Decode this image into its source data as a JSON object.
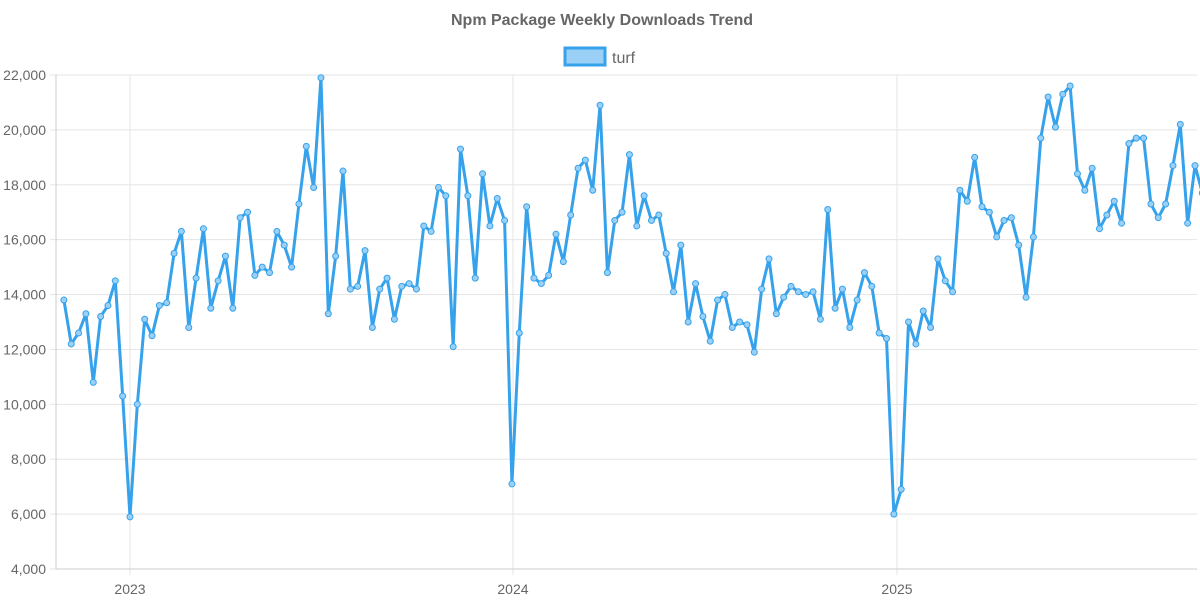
{
  "chart_data": {
    "type": "line",
    "title": "Npm Package Weekly Downloads Trend",
    "xlabel": "",
    "ylabel": "",
    "ylim": [
      4000,
      22000
    ],
    "y_ticks": [
      4000,
      6000,
      8000,
      10000,
      12000,
      14000,
      16000,
      18000,
      20000,
      22000
    ],
    "y_tick_labels": [
      "4,000",
      "6,000",
      "8,000",
      "10,000",
      "12,000",
      "14,000",
      "16,000",
      "18,000",
      "20,000",
      "22,000"
    ],
    "x_tick_labels": [
      "2023",
      "2024",
      "2025"
    ],
    "x_start_date": "2022-10-30",
    "x_step_days": 7,
    "grid": true,
    "legend_position": "top",
    "colors": {
      "line": "#36a2eb",
      "legend_fill": "#9ad0f5",
      "grid": "#e5e5e5",
      "axis": "#cccccc",
      "text": "#666666"
    },
    "series": [
      {
        "name": "turf",
        "values": [
          13800,
          12200,
          12600,
          13300,
          10800,
          13200,
          13600,
          14500,
          10300,
          5900,
          10000,
          13100,
          12500,
          13600,
          13700,
          15500,
          16300,
          12800,
          14600,
          16400,
          13500,
          14500,
          15400,
          13500,
          16800,
          17000,
          14700,
          15000,
          14800,
          16300,
          15800,
          15000,
          17300,
          19400,
          17900,
          21900,
          13300,
          15400,
          18500,
          14200,
          14300,
          15600,
          12800,
          14200,
          14600,
          13100,
          14300,
          14400,
          14200,
          16500,
          16300,
          17900,
          17600,
          12100,
          19300,
          17600,
          14600,
          18400,
          16500,
          17500,
          16700,
          7100,
          12600,
          17200,
          14600,
          14400,
          14700,
          16200,
          15200,
          16900,
          18600,
          18900,
          17800,
          20900,
          14800,
          16700,
          17000,
          19100,
          16500,
          17600,
          16700,
          16900,
          15500,
          14100,
          15800,
          13000,
          14400,
          13200,
          12300,
          13800,
          14000,
          12800,
          13000,
          12900,
          11900,
          14200,
          15300,
          13300,
          13900,
          14300,
          14100,
          14000,
          14100,
          13100,
          17100,
          13500,
          14200,
          12800,
          13800,
          14800,
          14300,
          12600,
          12400,
          6000,
          6900,
          13000,
          12200,
          13400,
          12800,
          15300,
          14500,
          14100,
          17800,
          17400,
          19000,
          17200,
          17000,
          16100,
          16700,
          16800,
          15800,
          13900,
          16100,
          19700,
          21200,
          20100,
          21300,
          21600,
          18400,
          17800,
          18600,
          16400,
          16900,
          17400,
          16600,
          19500,
          19700,
          19700,
          17300,
          16800,
          17300,
          18700,
          20200,
          16600,
          18700,
          17700
        ]
      }
    ]
  }
}
